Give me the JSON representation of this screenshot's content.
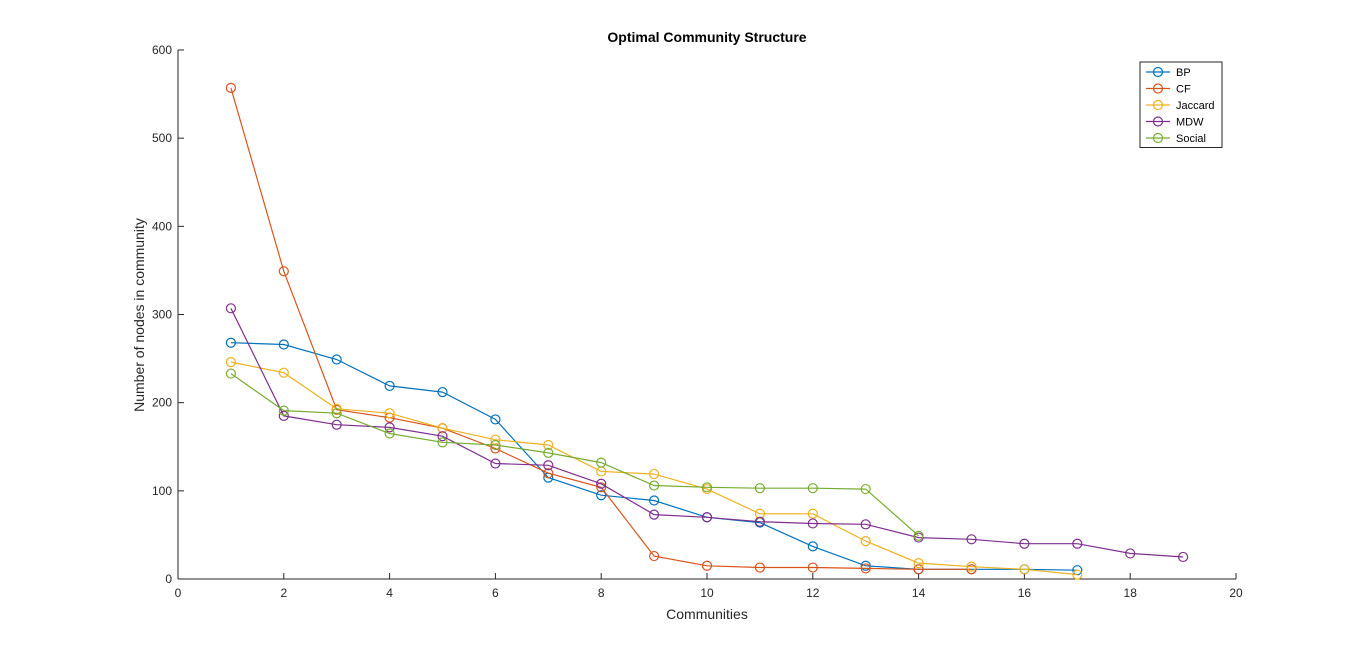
{
  "chart_data": {
    "type": "line",
    "title": "Optimal Community Structure",
    "xlabel": "Communities",
    "ylabel": "Number of nodes in community",
    "xlim": [
      0,
      20
    ],
    "ylim": [
      0,
      600
    ],
    "xticks": [
      0,
      2,
      4,
      6,
      8,
      10,
      12,
      14,
      16,
      18,
      20
    ],
    "yticks": [
      0,
      100,
      200,
      300,
      400,
      500,
      600
    ],
    "grid": false,
    "legend_location": "top-right",
    "marker": "circle",
    "series": [
      {
        "name": "BP",
        "color": "#0072BD",
        "x": [
          1,
          2,
          3,
          4,
          5,
          6,
          7,
          8,
          9,
          10,
          11,
          12,
          13,
          14,
          15,
          16,
          17
        ],
        "y": [
          268,
          266,
          249,
          219,
          212,
          181,
          115,
          95,
          89,
          70,
          64,
          37,
          15,
          11,
          11,
          11,
          10
        ]
      },
      {
        "name": "CF",
        "color": "#D95319",
        "x": [
          1,
          2,
          3,
          4,
          5,
          6,
          7,
          8,
          9,
          10,
          11,
          12,
          13,
          14,
          15
        ],
        "y": [
          557,
          349,
          192,
          183,
          171,
          148,
          120,
          104,
          26,
          15,
          13,
          13,
          12,
          11,
          11
        ]
      },
      {
        "name": "Jaccard",
        "color": "#EDB120",
        "x": [
          1,
          2,
          3,
          4,
          5,
          6,
          7,
          8,
          9,
          10,
          11,
          12,
          13,
          14,
          15,
          16,
          17
        ],
        "y": [
          246,
          234,
          193,
          188,
          171,
          158,
          152,
          122,
          119,
          102,
          74,
          74,
          43,
          18,
          14,
          11,
          5
        ]
      },
      {
        "name": "MDW",
        "color": "#7E2F8E",
        "x": [
          1,
          2,
          3,
          4,
          5,
          6,
          7,
          8,
          9,
          10,
          11,
          12,
          13,
          14,
          15,
          16,
          17,
          18,
          19
        ],
        "y": [
          307,
          185,
          175,
          172,
          162,
          131,
          129,
          108,
          73,
          70,
          65,
          63,
          62,
          47,
          45,
          40,
          40,
          29,
          25
        ]
      },
      {
        "name": "Social",
        "color": "#77AC30",
        "x": [
          1,
          2,
          3,
          4,
          5,
          6,
          7,
          8,
          9,
          10,
          11,
          12,
          13,
          14
        ],
        "y": [
          233,
          191,
          188,
          165,
          155,
          152,
          143,
          132,
          106,
          104,
          103,
          103,
          102,
          49
        ]
      }
    ]
  }
}
